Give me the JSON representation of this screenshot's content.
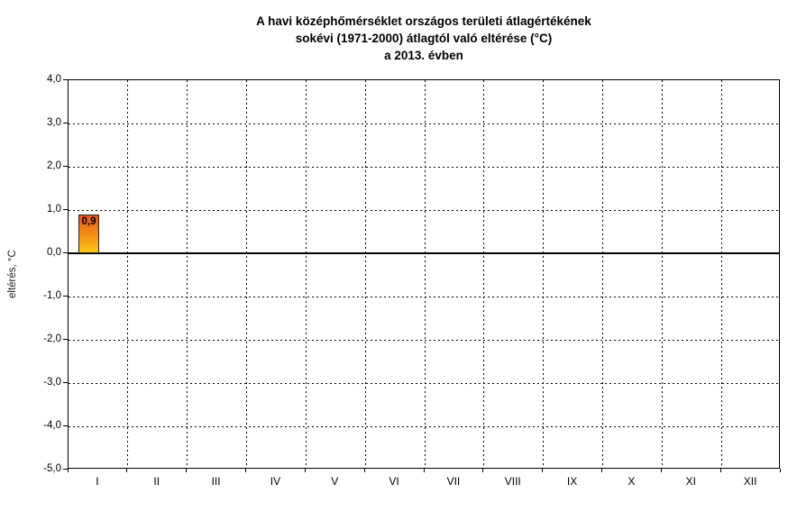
{
  "chart_data": {
    "type": "bar",
    "title": "A havi középhőmérséklet országos területi átlagértékének sokévi (1971-2000) átlagtól való eltérése (°C) a 2013. évben",
    "title_lines": [
      "A havi középhőmérséklet országos területi átlagértékének",
      "sokévi (1971-2000) átlagtól való eltérése (°C)",
      "a 2013. évben"
    ],
    "categories": [
      "I",
      "II",
      "III",
      "IV",
      "V",
      "VI",
      "VII",
      "VIII",
      "IX",
      "X",
      "XI",
      "XII"
    ],
    "values": [
      0.9,
      null,
      null,
      null,
      null,
      null,
      null,
      null,
      null,
      null,
      null,
      null
    ],
    "data_labels": [
      "0,9",
      null,
      null,
      null,
      null,
      null,
      null,
      null,
      null,
      null,
      null,
      null
    ],
    "xlabel": "",
    "ylabel": "eltérés, °C",
    "ylim": [
      -5.0,
      4.0
    ],
    "ytick_step": 1.0,
    "ytick_labels": [
      "4,0",
      "3,0",
      "2,0",
      "1,0",
      "0,0",
      "-1,0",
      "-2,0",
      "-3,0",
      "-4,0",
      "-5,0"
    ],
    "grid": "dashed-both-axes",
    "legend_position": "none",
    "zero_axis": "solid",
    "colors": {
      "background": "#FFFFFF",
      "title_text": "#000000",
      "axis_text": "#000000",
      "grid_line": "#000000",
      "axis_line": "#000000",
      "bar_gradient_top": "#E8551E",
      "bar_gradient_bottom": "#FEC613",
      "bar_border": "#262626",
      "data_label_text": "#000000"
    }
  }
}
